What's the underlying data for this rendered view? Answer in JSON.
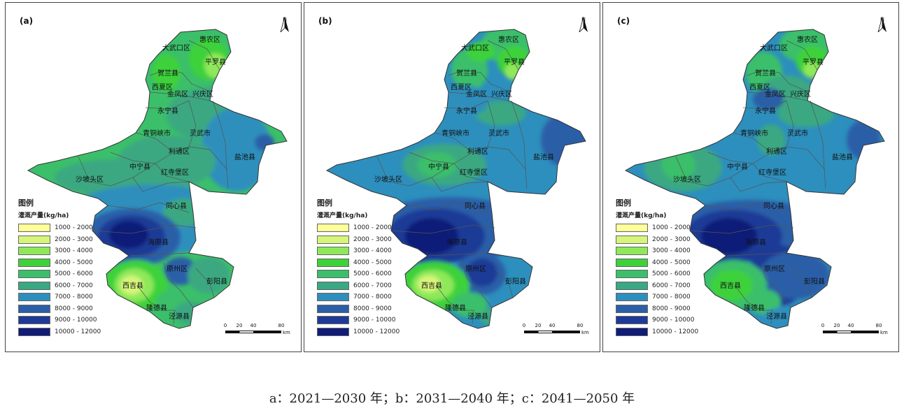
{
  "panels": [
    {
      "label": "(a)",
      "name": "panel-a"
    },
    {
      "label": "(b)",
      "name": "panel-b"
    },
    {
      "label": "(c)",
      "name": "panel-c"
    }
  ],
  "north_label": "N",
  "legend": {
    "title": "图例",
    "subtitle": "灌溉产量(kg/ha)",
    "classes": [
      {
        "range": "1000 - 2000",
        "color": "#ffff99"
      },
      {
        "range": "2000 - 3000",
        "color": "#d6f57a"
      },
      {
        "range": "3000 - 4000",
        "color": "#8ee85a"
      },
      {
        "range": "4000 - 5000",
        "color": "#3ed13a"
      },
      {
        "range": "5000 - 6000",
        "color": "#3bbf6a"
      },
      {
        "range": "6000 - 7000",
        "color": "#3aa882"
      },
      {
        "range": "7000 - 8000",
        "color": "#2d8fbd"
      },
      {
        "range": "8000 - 9000",
        "color": "#2a5fa8"
      },
      {
        "range": "9000 - 10000",
        "color": "#1f3a96"
      },
      {
        "range": "10000 - 12000",
        "color": "#101c78"
      }
    ]
  },
  "scale_bar": {
    "ticks": [
      "0",
      "20",
      "40",
      "80"
    ],
    "unit": "km"
  },
  "counties": [
    "惠农区",
    "大武口区",
    "平罗县",
    "贺兰县",
    "西夏区",
    "金凤区",
    "兴庆区",
    "永宁县",
    "青铜峡市",
    "灵武市",
    "利通区",
    "盐池县",
    "中宁县",
    "红寺堡区",
    "沙坡头区",
    "同心县",
    "海原县",
    "原州区",
    "西吉县",
    "彭阳县",
    "隆德县",
    "泾源县"
  ],
  "caption": "a：2021—2030 年；b：2031—2040 年；c：2041—2050 年"
}
